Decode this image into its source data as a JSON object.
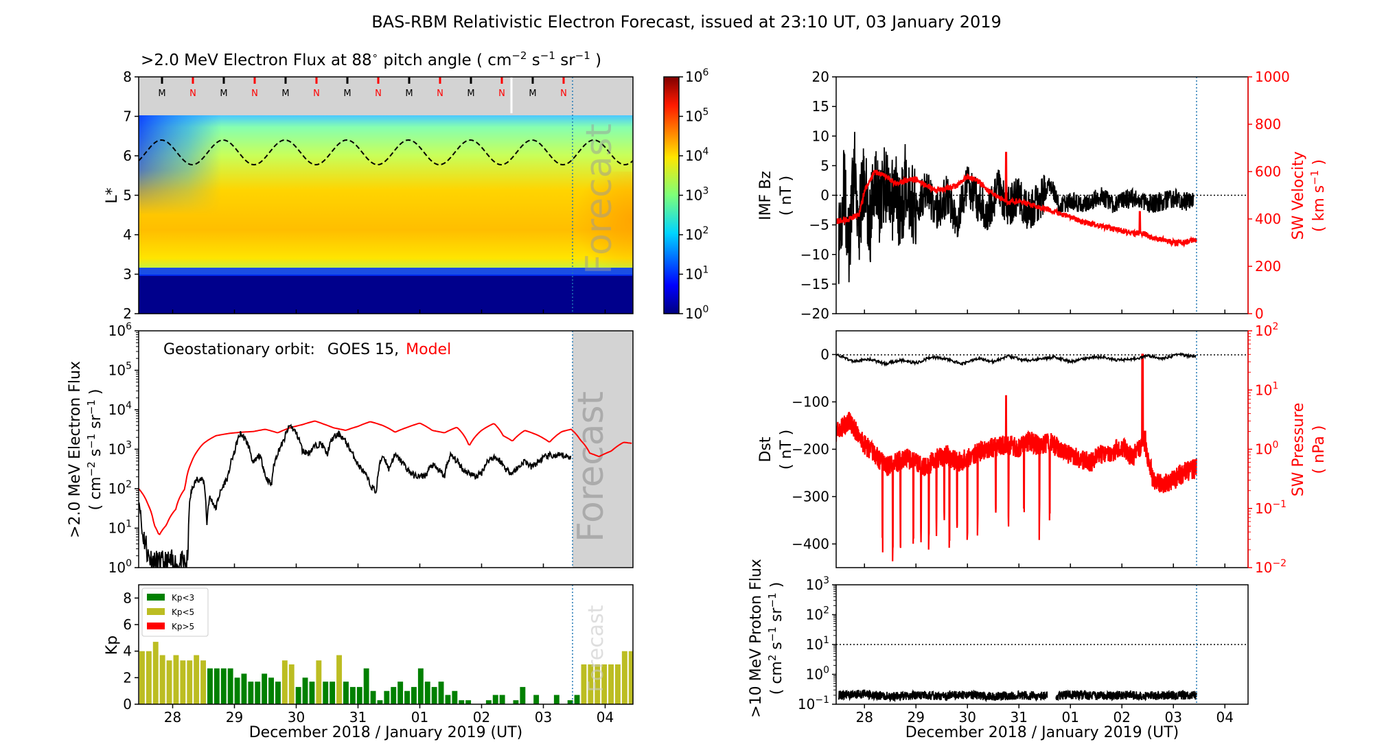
{
  "figure": {
    "title": "BAS-RBM Relativistic Electron Forecast, issued at 23:10 UT, 03 January 2019",
    "xlabel": "December 2018 / January 2019 (UT)",
    "x_tick_labels": [
      "28",
      "29",
      "30",
      "31",
      "01",
      "02",
      "03",
      "04"
    ],
    "forecast_label": "Forecast"
  },
  "colors": {
    "model": "#ff0000",
    "observed": "#000000",
    "forecast_shade": "#d3d3d3",
    "forecast_line": "#1f77b4",
    "kp_low": "#008000",
    "kp_mid": "#bcbd22",
    "kp_high": "#ff0000"
  },
  "chart_data": [
    {
      "id": "flux_map",
      "type": "heatmap",
      "title_parts": {
        "prefix": ">2.0 MeV Electron Flux at 88",
        "deg": "∘",
        "units_open": " pitch angle ( cm",
        "e1": "−2",
        "s": " s",
        "e2": "−1",
        "sr": " sr",
        "e3": "−1",
        "close": " )"
      },
      "ylabel": "L*",
      "ylim": [
        2,
        8
      ],
      "y_ticks": [
        "2",
        "3",
        "4",
        "5",
        "6",
        "7",
        "8"
      ],
      "colorbar": {
        "ticks": [
          "10",
          "10",
          "10",
          "10",
          "10",
          "10",
          "10"
        ],
        "exponents": [
          "0",
          "1",
          "2",
          "3",
          "4",
          "5",
          "6"
        ],
        "range": [
          0,
          6
        ]
      },
      "orbit_markers": [
        "M",
        "N",
        "M",
        "N",
        "M",
        "N",
        "M",
        "N",
        "M",
        "N",
        "M",
        "N",
        "M",
        "N"
      ],
      "orbit_marker_colors": [
        "#000000",
        "#ff0000",
        "#000000",
        "#ff0000",
        "#000000",
        "#ff0000",
        "#000000",
        "#ff0000",
        "#000000",
        "#ff0000",
        "#000000",
        "#ff0000",
        "#000000",
        "#ff0000"
      ],
      "x_range_days": [
        27.45,
        35.45
      ],
      "forecast_start_day": 34.45
    },
    {
      "id": "geo_flux",
      "type": "line",
      "legend_prefix": "Geostationary orbit:",
      "legend_obs": "GOES 15,",
      "legend_model": "Model",
      "ylabel_lines": [
        ">2.0 MeV Electron Flux",
        "( cm",
        "−2",
        " s",
        "−1",
        " sr",
        "−1",
        " )"
      ],
      "y_ticks": [
        "10",
        "10",
        "10",
        "10",
        "10",
        "10",
        "10"
      ],
      "y_exponents": [
        "0",
        "1",
        "2",
        "3",
        "4",
        "5",
        "6"
      ],
      "ylim_log10": [
        0,
        6
      ],
      "x_range_days": [
        27.45,
        35.45
      ],
      "series": [
        {
          "name": "Model",
          "x": [
            27.45,
            27.6,
            27.7,
            27.78,
            27.9,
            28.05,
            28.2,
            28.3,
            28.4,
            28.5,
            28.7,
            28.9,
            29.1,
            29.3,
            29.5,
            29.7,
            29.9,
            30.1,
            30.3,
            30.45,
            30.6,
            30.8,
            31.0,
            31.2,
            31.4,
            31.6,
            31.8,
            32.0,
            32.2,
            32.4,
            32.6,
            32.8,
            33.0,
            33.2,
            33.35,
            33.5,
            33.7,
            33.9,
            34.1,
            34.3,
            34.45,
            34.6,
            34.75,
            34.9,
            35.1,
            35.3,
            35.45
          ],
          "values": [
            100,
            40,
            12,
            6.5,
            12,
            30,
            100,
            450,
            900,
            1400,
            2200,
            2500,
            2700,
            2800,
            3200,
            2600,
            3500,
            4200,
            5200,
            4300,
            3500,
            3000,
            3800,
            5000,
            4000,
            2700,
            3600,
            4600,
            3000,
            2600,
            3600,
            1200,
            3000,
            4500,
            2200,
            1600,
            3000,
            2300,
            1500,
            2800,
            3200,
            1700,
            800,
            650,
            900,
            1500,
            1400
          ]
        },
        {
          "name": "GOES 15",
          "x": [
            27.45,
            27.5,
            27.6,
            27.7,
            27.8,
            27.9,
            28.0,
            28.1,
            28.2,
            28.25,
            28.3,
            28.4,
            28.5,
            28.55,
            28.6,
            28.7,
            28.8,
            28.9,
            29.0,
            29.1,
            29.2,
            29.3,
            29.4,
            29.5,
            29.6,
            29.7,
            29.8,
            29.9,
            30.0,
            30.1,
            30.2,
            30.3,
            30.4,
            30.5,
            30.6,
            30.7,
            30.8,
            30.9,
            31.0,
            31.1,
            31.2,
            31.3,
            31.4,
            31.5,
            31.6,
            31.7,
            31.8,
            31.9,
            32.0,
            32.1,
            32.2,
            32.3,
            32.4,
            32.5,
            32.6,
            32.7,
            32.8,
            32.9,
            33.0,
            33.1,
            33.2,
            33.3,
            33.4,
            33.5,
            33.6,
            33.7,
            33.8,
            33.9,
            34.0,
            34.1,
            34.2,
            34.3,
            34.45
          ],
          "values": [
            50,
            8,
            2,
            1.3,
            1.2,
            1.2,
            1.3,
            1.1,
            1.2,
            1.4,
            80,
            180,
            160,
            8,
            60,
            30,
            100,
            200,
            800,
            2500,
            1500,
            400,
            700,
            200,
            120,
            800,
            1600,
            4000,
            2500,
            900,
            800,
            1200,
            1400,
            700,
            2000,
            2400,
            1500,
            800,
            400,
            250,
            120,
            80,
            700,
            300,
            700,
            500,
            300,
            220,
            200,
            220,
            400,
            300,
            200,
            700,
            500,
            300,
            250,
            200,
            250,
            500,
            650,
            500,
            300,
            250,
            350,
            500,
            350,
            450,
            600,
            700,
            650,
            700,
            620
          ]
        }
      ]
    },
    {
      "id": "kp",
      "type": "bar",
      "ylabel": "Kp",
      "ylim": [
        0,
        9
      ],
      "y_ticks": [
        "0",
        "2",
        "4",
        "6",
        "8"
      ],
      "legend": [
        "Kp<3",
        "Kp<5",
        "Kp>5"
      ],
      "bar_width_days": 0.11,
      "x_start_day": 27.45,
      "values": [
        4,
        4,
        4.7,
        3.7,
        3.3,
        3.7,
        3.3,
        3.3,
        3.7,
        3.3,
        2.7,
        2.7,
        2.7,
        2.7,
        2,
        2.3,
        1.7,
        1.7,
        2.3,
        2,
        1.7,
        3.3,
        3,
        1.3,
        2,
        1.7,
        3.3,
        1.7,
        1.7,
        3.7,
        1.7,
        1.3,
        1.3,
        2.7,
        1,
        0.3,
        1,
        1.3,
        1.7,
        1,
        1.3,
        2.7,
        1.7,
        1.3,
        1.7,
        0.7,
        1,
        0.3,
        0.3,
        0,
        0,
        0.3,
        0.7,
        0.7,
        0,
        0.3,
        1.3,
        0,
        0.7,
        0,
        0,
        0.7,
        0,
        0.3,
        0.7,
        3,
        3,
        3,
        3,
        3,
        3,
        4,
        4,
        4,
        4,
        4
      ],
      "forecast_from_index": 65
    },
    {
      "id": "imf_bz",
      "type": "line",
      "ylabel_left": [
        "IMF Bz",
        "( nT )"
      ],
      "ylabel_right": [
        "SW Velocity",
        "( km s",
        "−1",
        " )"
      ],
      "ylim_left": [
        -20,
        20
      ],
      "ylim_right": [
        0,
        1000
      ],
      "left_ticks": [
        "20",
        "15",
        "10",
        "5",
        "0",
        "−5",
        "−10",
        "−15",
        "−20"
      ],
      "left_tick_values": [
        20,
        15,
        10,
        5,
        0,
        -5,
        -10,
        -15,
        -20
      ],
      "right_ticks": [
        "1000",
        "800",
        "600",
        "400",
        "200",
        "0"
      ],
      "right_tick_values": [
        1000,
        800,
        600,
        400,
        200,
        0
      ],
      "x_range_days": [
        27.45,
        35.45
      ],
      "series": [
        {
          "name": "IMF Bz",
          "x": [
            27.5,
            27.6,
            27.7,
            27.8,
            27.9,
            28.0,
            28.1,
            28.2,
            28.3,
            28.4,
            28.5,
            28.6,
            28.7,
            28.8,
            28.9,
            29.0,
            29.2,
            29.4,
            29.6,
            29.8,
            30.0,
            30.2,
            30.4,
            30.6,
            30.8,
            31.0,
            31.2,
            31.4,
            31.6,
            31.8,
            32.0,
            32.2,
            32.4,
            32.6,
            32.8,
            33.0,
            33.2,
            33.4,
            33.6,
            33.8,
            34.0,
            34.2,
            34.4
          ],
          "values": [
            -8,
            2,
            -10,
            5,
            -4,
            3,
            -6,
            4,
            -2,
            3,
            -3,
            2,
            -4,
            3,
            -1,
            -2,
            1,
            -3,
            0,
            -4,
            2,
            -1,
            -3,
            1,
            -2,
            0,
            -3,
            -1,
            2,
            -2,
            -1,
            -1.5,
            -1,
            0,
            -1.5,
            -1,
            -0.5,
            -1,
            -1.5,
            -1,
            -0.5,
            -1,
            -1
          ]
        },
        {
          "name": "SW Velocity",
          "x": [
            27.45,
            27.7,
            27.9,
            28.0,
            28.2,
            28.4,
            28.6,
            28.8,
            29.0,
            29.2,
            29.4,
            29.6,
            29.8,
            30.0,
            30.2,
            30.4,
            30.6,
            30.8,
            31.0,
            31.2,
            31.4,
            31.6,
            31.8,
            32.0,
            32.2,
            32.4,
            32.6,
            32.8,
            33.0,
            33.2,
            33.4,
            33.6,
            33.8,
            34.0,
            34.2,
            34.45
          ],
          "values": [
            390,
            400,
            420,
            520,
            600,
            580,
            550,
            560,
            570,
            540,
            520,
            530,
            540,
            580,
            560,
            520,
            490,
            470,
            480,
            460,
            450,
            440,
            420,
            410,
            390,
            380,
            370,
            360,
            350,
            340,
            340,
            320,
            310,
            300,
            300,
            315
          ]
        }
      ]
    },
    {
      "id": "dst",
      "type": "line",
      "ylabel_left": [
        "Dst",
        "( nT )"
      ],
      "ylabel_right": [
        "SW Pressure",
        "( nPa )"
      ],
      "ylim_left": [
        -450,
        50
      ],
      "ylim_right_log10": [
        -2,
        2
      ],
      "left_ticks": [
        "0",
        "−100",
        "−200",
        "−300",
        "−400"
      ],
      "left_tick_values": [
        0,
        -100,
        -200,
        -300,
        -400
      ],
      "right_ticks": [
        "10",
        "10",
        "10",
        "10",
        "10"
      ],
      "right_exponents": [
        "2",
        "1",
        "0",
        "−1",
        "−2"
      ],
      "x_range_days": [
        27.45,
        35.45
      ],
      "series": [
        {
          "name": "Dst",
          "x": [
            27.45,
            27.8,
            28.1,
            28.4,
            28.7,
            29.0,
            29.3,
            29.6,
            29.9,
            30.2,
            30.5,
            30.8,
            31.1,
            31.4,
            31.7,
            32.0,
            32.3,
            32.6,
            32.9,
            33.2,
            33.5,
            33.8,
            34.1,
            34.45
          ],
          "values": [
            0,
            -15,
            -10,
            -20,
            -12,
            -18,
            -5,
            -10,
            -20,
            -8,
            -15,
            -3,
            -12,
            -10,
            -5,
            -15,
            -8,
            -5,
            -12,
            -10,
            -3,
            -8,
            0,
            -5
          ]
        },
        {
          "name": "SW Pressure",
          "x": [
            27.45,
            27.6,
            27.7,
            27.9,
            28.0,
            28.2,
            28.4,
            28.6,
            28.8,
            29.0,
            29.2,
            29.4,
            29.6,
            29.8,
            30.0,
            30.2,
            30.4,
            30.6,
            30.8,
            31.0,
            31.2,
            31.4,
            31.6,
            31.8,
            32.0,
            32.2,
            32.4,
            32.6,
            32.8,
            33.0,
            33.2,
            33.4,
            33.6,
            33.8,
            34.0,
            34.2,
            34.45
          ],
          "values": [
            2,
            2.5,
            3,
            1.5,
            1.2,
            0.8,
            0.5,
            0.6,
            0.7,
            0.6,
            0.5,
            0.7,
            0.8,
            0.6,
            0.7,
            0.9,
            1,
            1.1,
            1.2,
            1,
            1.4,
            1.1,
            1.3,
            1,
            0.8,
            0.7,
            0.6,
            0.8,
            0.9,
            1.1,
            0.7,
            1.2,
            0.3,
            0.25,
            0.3,
            0.4,
            0.5
          ]
        }
      ]
    },
    {
      "id": "proton_flux",
      "type": "line",
      "ylabel_lines": [
        ">10 MeV Proton Flux",
        "( cm",
        "2",
        " s",
        "−1",
        " sr",
        "−1",
        " )"
      ],
      "ylim_log10": [
        -1,
        3
      ],
      "y_ticks": [
        "10",
        "10",
        "10",
        "10",
        "10"
      ],
      "y_exponents": [
        "3",
        "2",
        "1",
        "0",
        "−1"
      ],
      "threshold": 10,
      "x_range_days": [
        27.45,
        35.45
      ],
      "series": [
        {
          "name": ">10 MeV Proton Flux",
          "x": [
            27.5,
            28.0,
            28.5,
            29.0,
            29.5,
            30.0,
            30.5,
            31.0,
            31.5,
            31.7,
            31.8,
            32.0,
            32.5,
            33.0,
            33.5,
            34.0,
            34.45
          ],
          "values": [
            0.2,
            0.22,
            0.18,
            0.2,
            0.19,
            0.21,
            0.18,
            0.2,
            0.19,
            0.19,
            0.2,
            0.21,
            0.19,
            0.2,
            0.19,
            0.2,
            0.2
          ]
        }
      ]
    }
  ]
}
